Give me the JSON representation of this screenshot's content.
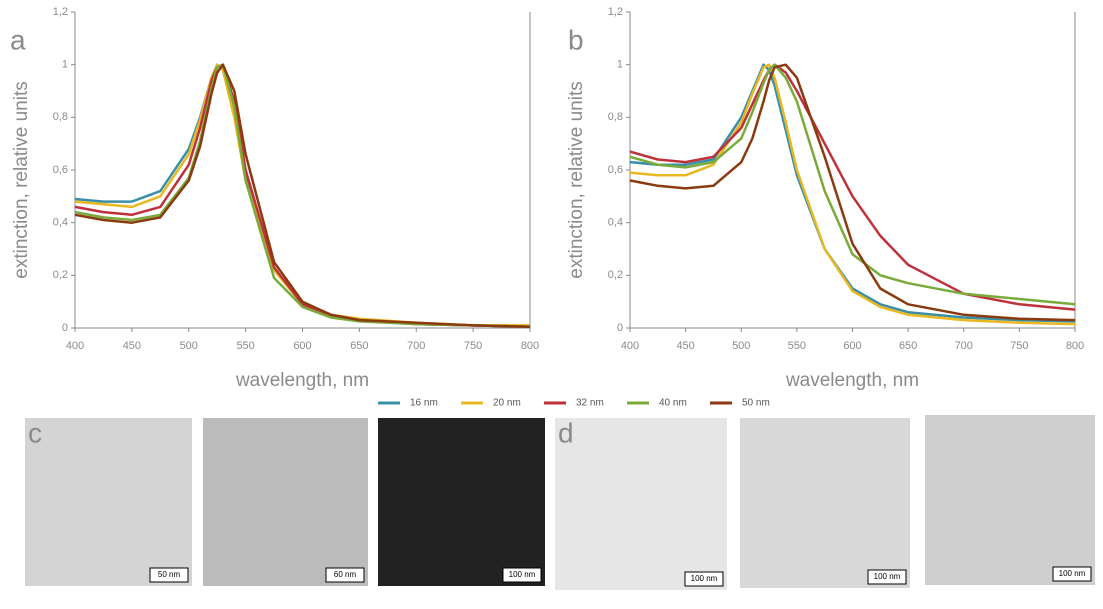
{
  "chart_data": [
    {
      "type": "line",
      "panel_label": "a",
      "x_label": "wavelength, nm",
      "y_label": "extinction, relative units",
      "x": [
        400,
        425,
        450,
        475,
        500,
        510,
        520,
        525,
        530,
        540,
        550,
        575,
        600,
        625,
        650,
        700,
        750,
        800
      ],
      "xlim": [
        400,
        800
      ],
      "xticks": [
        400,
        450,
        500,
        550,
        600,
        650,
        700,
        750,
        800
      ],
      "ylim": [
        0,
        1.2
      ],
      "yticks": [
        0,
        {
          "value": 0.2,
          "label": "0,2"
        },
        {
          "value": 0.4,
          "label": "0,4"
        },
        {
          "value": 0.6,
          "label": "0,6"
        },
        {
          "value": 0.8,
          "label": "0,8"
        },
        1,
        {
          "value": 1.2,
          "label": "1,2"
        }
      ],
      "series": [
        {
          "name": "16 nm",
          "color": "#3a8fa8",
          "values": [
            0.49,
            0.48,
            0.48,
            0.52,
            0.68,
            0.8,
            0.95,
            1.0,
            0.98,
            0.82,
            0.58,
            0.22,
            0.09,
            0.05,
            0.03,
            0.015,
            0.01,
            0.005
          ]
        },
        {
          "name": "20 nm",
          "color": "#e8b820",
          "values": [
            0.48,
            0.47,
            0.46,
            0.5,
            0.66,
            0.79,
            0.95,
            1.0,
            0.98,
            0.8,
            0.56,
            0.22,
            0.09,
            0.05,
            0.035,
            0.02,
            0.01,
            0.01
          ]
        },
        {
          "name": "32 nm",
          "color": "#c0303a",
          "values": [
            0.46,
            0.44,
            0.43,
            0.46,
            0.62,
            0.76,
            0.94,
            0.99,
            1.0,
            0.86,
            0.6,
            0.23,
            0.09,
            0.05,
            0.03,
            0.015,
            0.01,
            0.005
          ]
        },
        {
          "name": "40 nm",
          "color": "#7aab3a",
          "values": [
            0.44,
            0.42,
            0.41,
            0.43,
            0.57,
            0.71,
            0.91,
            0.99,
            1.0,
            0.84,
            0.56,
            0.19,
            0.08,
            0.04,
            0.025,
            0.015,
            0.01,
            0.005
          ]
        },
        {
          "name": "50 nm",
          "color": "#8b3a10",
          "values": [
            0.43,
            0.41,
            0.4,
            0.42,
            0.56,
            0.69,
            0.89,
            0.97,
            1.0,
            0.9,
            0.66,
            0.25,
            0.1,
            0.05,
            0.03,
            0.02,
            0.01,
            0.005
          ]
        }
      ]
    },
    {
      "type": "line",
      "panel_label": "b",
      "x_label": "wavelength, nm",
      "y_label": "extinction, relative units",
      "x": [
        400,
        425,
        450,
        475,
        500,
        510,
        520,
        525,
        530,
        540,
        550,
        575,
        600,
        625,
        650,
        700,
        750,
        800
      ],
      "xlim": [
        400,
        800
      ],
      "xticks": [
        400,
        450,
        500,
        550,
        600,
        650,
        700,
        750,
        800
      ],
      "ylim": [
        0,
        1.2
      ],
      "yticks": [
        0,
        {
          "value": 0.2,
          "label": "0,2"
        },
        {
          "value": 0.4,
          "label": "0,4"
        },
        {
          "value": 0.6,
          "label": "0,6"
        },
        {
          "value": 0.8,
          "label": "0,8"
        },
        1,
        {
          "value": 1.2,
          "label": "1,2"
        }
      ],
      "series": [
        {
          "color": "#3a8fa8",
          "values": [
            0.63,
            0.62,
            0.62,
            0.64,
            0.8,
            0.9,
            1.0,
            0.98,
            0.92,
            0.75,
            0.58,
            0.3,
            0.15,
            0.09,
            0.06,
            0.04,
            0.03,
            0.025
          ]
        },
        {
          "color": "#e8b820",
          "values": [
            0.59,
            0.58,
            0.58,
            0.62,
            0.78,
            0.89,
            0.99,
            1.0,
            0.95,
            0.78,
            0.6,
            0.3,
            0.14,
            0.08,
            0.05,
            0.03,
            0.02,
            0.015
          ]
        },
        {
          "color": "#c0303a",
          "values": [
            0.67,
            0.64,
            0.63,
            0.65,
            0.76,
            0.85,
            0.94,
            0.98,
            1.0,
            0.97,
            0.9,
            0.7,
            0.5,
            0.35,
            0.24,
            0.13,
            0.09,
            0.07
          ]
        },
        {
          "color": "#7aab3a",
          "values": [
            0.65,
            0.62,
            0.61,
            0.63,
            0.72,
            0.82,
            0.93,
            0.98,
            1.0,
            0.95,
            0.86,
            0.52,
            0.28,
            0.2,
            0.17,
            0.13,
            0.11,
            0.09
          ]
        },
        {
          "color": "#8b3a10",
          "values": [
            0.56,
            0.54,
            0.53,
            0.54,
            0.63,
            0.72,
            0.86,
            0.94,
            0.99,
            1.0,
            0.95,
            0.65,
            0.32,
            0.15,
            0.09,
            0.05,
            0.035,
            0.03
          ]
        }
      ]
    }
  ],
  "panels": {
    "c": {
      "label": "c",
      "scale_bars": [
        "50 nm",
        "60 nm",
        "100 nm"
      ]
    },
    "d": {
      "label": "d",
      "scale_bars": [
        "100 nm",
        "100 nm",
        "100 nm"
      ]
    }
  }
}
